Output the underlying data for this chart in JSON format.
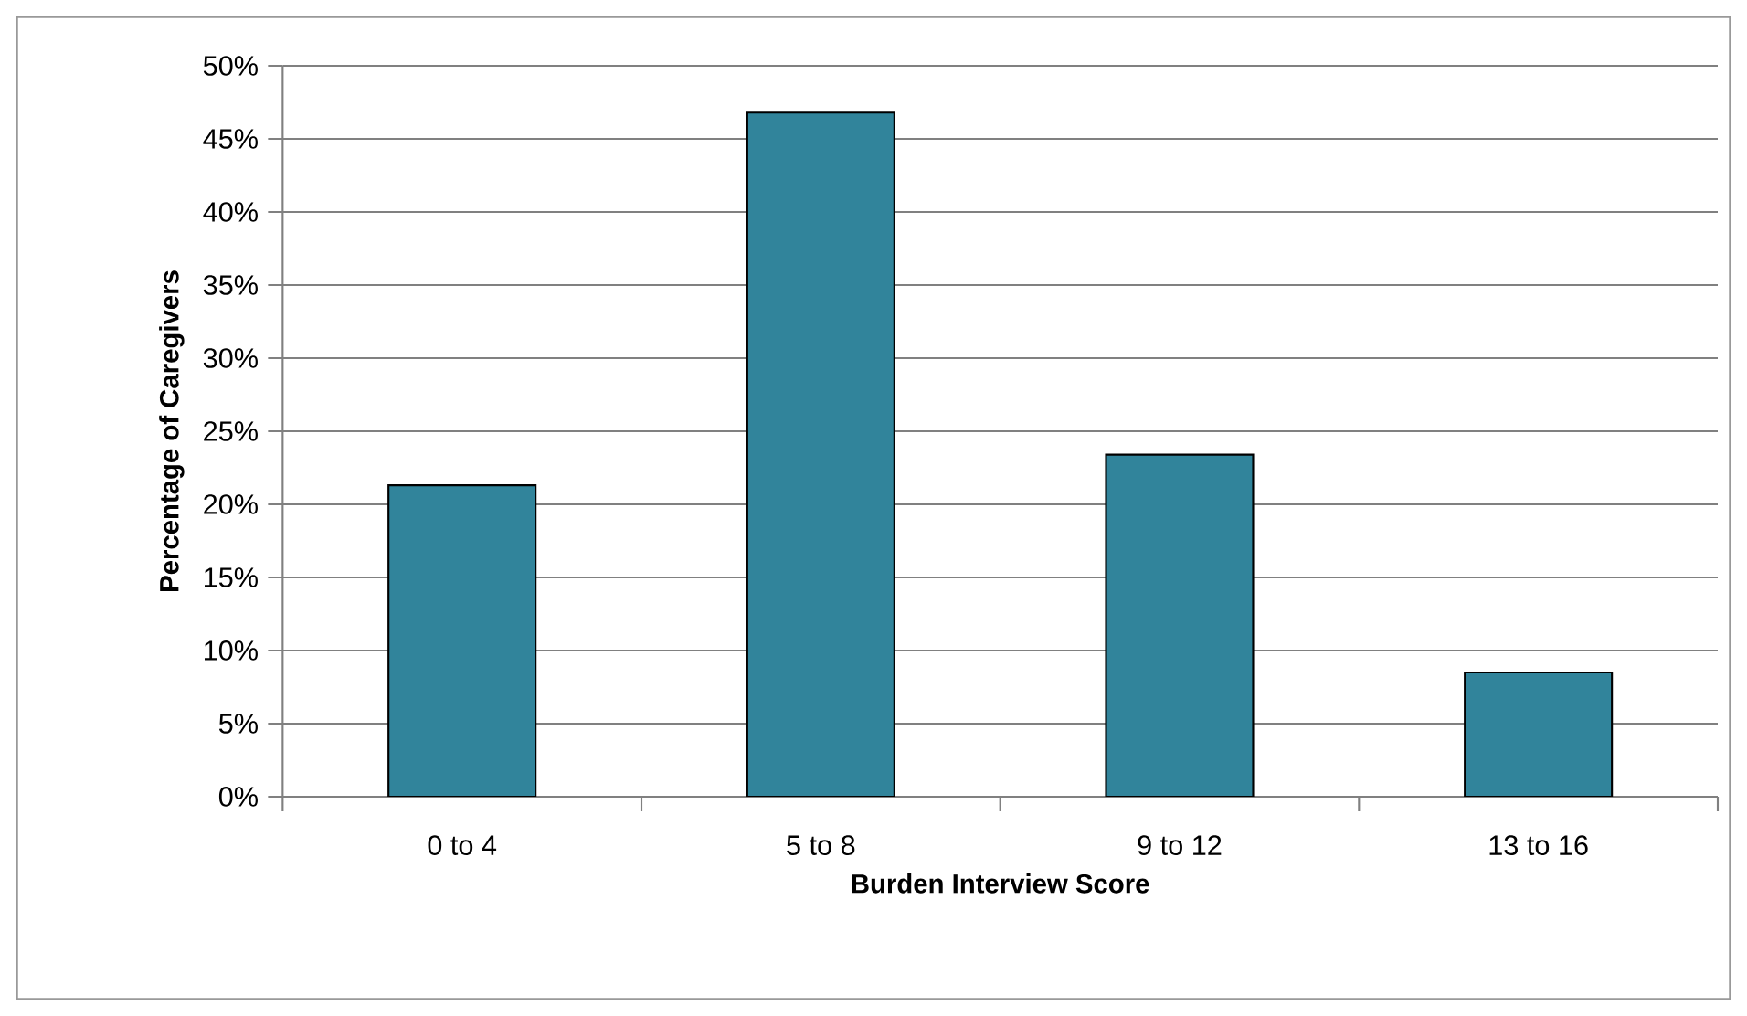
{
  "chart_data": {
    "type": "bar",
    "xlabel": "Burden Interview Score",
    "ylabel": "Percentage of Caregivers",
    "categories": [
      "0 to 4",
      "5 to 8",
      "9 to 12",
      "13 to 16"
    ],
    "values": [
      21.3,
      46.8,
      23.4,
      8.5
    ],
    "color": "#31849b",
    "ylim": [
      0,
      50
    ],
    "yticks": [
      {
        "value": 0,
        "label": "0%"
      },
      {
        "value": 5,
        "label": "5%"
      },
      {
        "value": 10,
        "label": "10%"
      },
      {
        "value": 15,
        "label": "15%"
      },
      {
        "value": 20,
        "label": "20%"
      },
      {
        "value": 25,
        "label": "25%"
      },
      {
        "value": 30,
        "label": "30%"
      },
      {
        "value": 35,
        "label": "35%"
      },
      {
        "value": 40,
        "label": "40%"
      },
      {
        "value": 45,
        "label": "45%"
      },
      {
        "value": 50,
        "label": "50%"
      }
    ],
    "grid": "y"
  }
}
